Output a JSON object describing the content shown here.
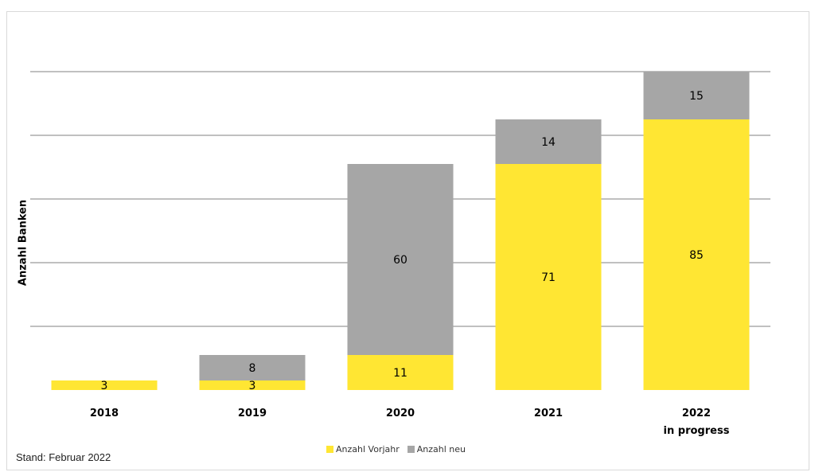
{
  "chart_data": {
    "type": "bar",
    "stacked": true,
    "ylabel": "Anzahl Banken",
    "ylim": [
      0,
      100
    ],
    "grid": true,
    "categories": [
      "2018",
      "2019",
      "2020",
      "2021",
      "2022"
    ],
    "category_sublabels": [
      "",
      "",
      "",
      "",
      "in progress"
    ],
    "series": [
      {
        "name": "Anzahl Vorjahr",
        "color": "#ffe633",
        "values": [
          3,
          3,
          11,
          71,
          85
        ]
      },
      {
        "name": "Anzahl neu",
        "color": "#a6a6a6",
        "values": [
          0,
          8,
          60,
          14,
          15
        ]
      }
    ],
    "legend_position": "bottom"
  },
  "footer": {
    "stand": "Stand: Februar 2022"
  }
}
